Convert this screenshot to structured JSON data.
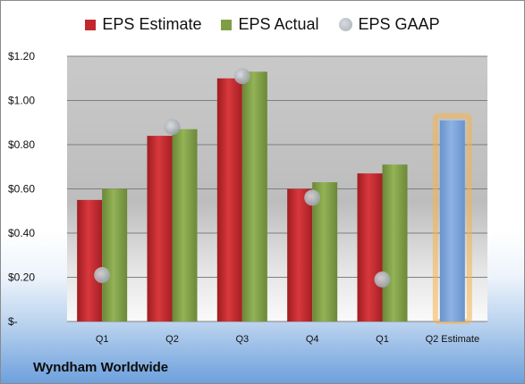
{
  "chart_data": {
    "type": "bar",
    "categories": [
      "Q1",
      "Q2",
      "Q3",
      "Q4",
      "Q1",
      "Q2 Estimate"
    ],
    "series": [
      {
        "name": "EPS Estimate",
        "color": "#c0282d",
        "values": [
          0.55,
          0.84,
          1.1,
          0.6,
          0.67,
          null
        ]
      },
      {
        "name": "EPS Actual",
        "color": "#7f9e44",
        "values": [
          0.6,
          0.87,
          1.13,
          0.63,
          0.71,
          null
        ]
      },
      {
        "name": "EPS GAAP",
        "color": "#a9aeb4",
        "marker": "circle",
        "values": [
          0.21,
          0.88,
          1.11,
          0.56,
          0.19,
          null
        ]
      }
    ],
    "forecast": {
      "category": "Q2 Estimate",
      "value": 0.91,
      "color": "#7ea6dc",
      "glow": "#f5b24a"
    },
    "ylim": [
      0,
      1.2
    ],
    "yticks": [
      {
        "value": 0,
        "label": "$-"
      },
      {
        "value": 0.2,
        "label": "$0.20"
      },
      {
        "value": 0.4,
        "label": "$0.40"
      },
      {
        "value": 0.6,
        "label": "$0.60"
      },
      {
        "value": 0.8,
        "label": "$0.80"
      },
      {
        "value": 1.0,
        "label": "$1.00"
      },
      {
        "value": 1.2,
        "label": "$1.20"
      }
    ],
    "grid": true,
    "legend_position": "top"
  },
  "brand": "Wyndham Worldwide"
}
